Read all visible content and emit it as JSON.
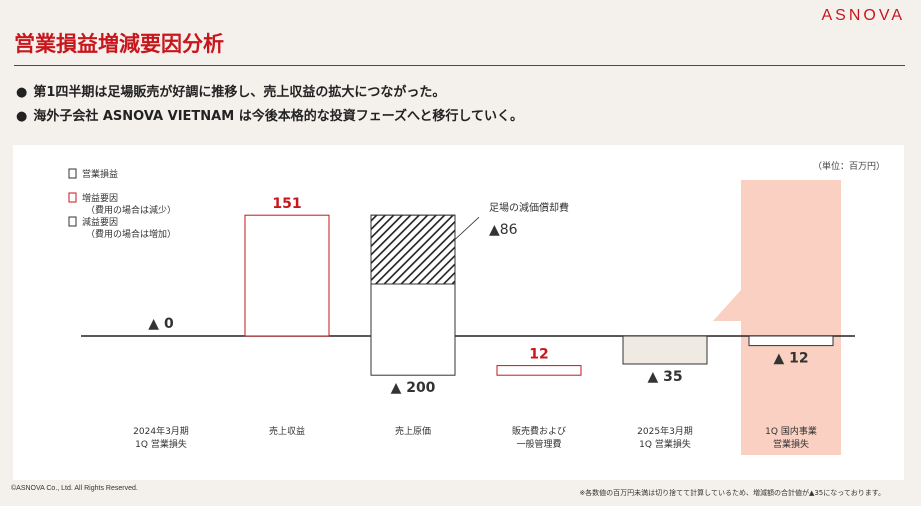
{
  "header": {
    "title": "営業損益増減要因分析",
    "logo": "ASNOVA"
  },
  "bullets": [
    "第1四半期は足場販売が好調に推移し、売上収益の拡大につながった。",
    "海外子会社 ASNOVA VIETNAM は今後本格的な投資フェーズへと移行していく。"
  ],
  "footer": {
    "copyright": "©ASNOVA Co., Ltd. All Rights Reserved.",
    "note": "※各数値の百万円未満は切り捨てて計算しているため、増減額の合計値が▲35になっております。"
  },
  "colors": {
    "accent": "#c8161d",
    "highlight": "#f9d0c1",
    "neutral_fill": "#efebe2",
    "axis": "#222222"
  },
  "chart_data": {
    "type": "bar",
    "subtype": "waterfall",
    "unit": "（単位：百万円）",
    "legend": [
      {
        "kind": "neutral",
        "label": "営業損益",
        "sublabel": ""
      },
      {
        "kind": "increase",
        "label": "増益要因",
        "sublabel": "（費用の場合は減少）"
      },
      {
        "kind": "decrease",
        "label": "減益要因",
        "sublabel": "（費用の場合は増加）"
      }
    ],
    "legend_placement": "top-left",
    "categories": [
      [
        "2024年3月期",
        "1Q 営業損失"
      ],
      [
        "売上収益"
      ],
      [
        "売上原価"
      ],
      [
        "販売費および",
        "一般管理費"
      ],
      [
        "2025年3月期",
        "1Q 営業損失"
      ],
      [
        "1Q 国内事業",
        "営業損失"
      ]
    ],
    "bars": [
      {
        "kind": "neutral",
        "start": 0,
        "end": 0,
        "label": "▲ 0"
      },
      {
        "kind": "increase",
        "start": 0,
        "end": 151,
        "label": "151"
      },
      {
        "kind": "decrease",
        "start": 151,
        "end": -49,
        "label": "▲ 200"
      },
      {
        "kind": "increase",
        "start": -49,
        "end": -37,
        "label": "12"
      },
      {
        "kind": "neutral",
        "start": 0,
        "end": -35,
        "label": "▲ 35"
      },
      {
        "kind": "neutral",
        "start": 0,
        "end": -12,
        "label": "▲ 12"
      }
    ],
    "hatched_portion": {
      "bar": 2,
      "start": 151,
      "end": 65
    },
    "annotation": {
      "text": "足場の減価償却費",
      "value": "▲86"
    },
    "highlight_bar": 5,
    "ylim": [
      -58,
      165
    ]
  }
}
